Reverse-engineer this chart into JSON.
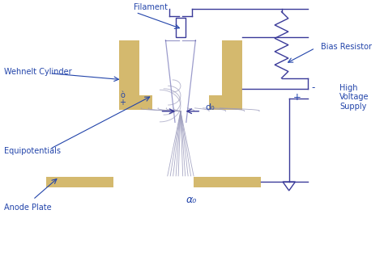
{
  "background_color": "#ffffff",
  "diagram_color": "#3a3a99",
  "gold_color": "#d4b96e",
  "line_color": "#9999bb",
  "text_color": "#2244aa",
  "labels": {
    "filament": "Filament",
    "wehnelt": "Wehnelt Cylinder",
    "equipotentials": "Equipotentials",
    "anode": "Anode Plate",
    "bias": "Bias Resistor",
    "hv_minus": "-",
    "hv_plus": "+",
    "hv_label": "High\nVoltage\nSupply",
    "d0": "d₀",
    "alpha0": "α₀",
    "o_label": "ò\n+"
  },
  "xlim": [
    0,
    10
  ],
  "ylim": [
    0,
    8
  ]
}
